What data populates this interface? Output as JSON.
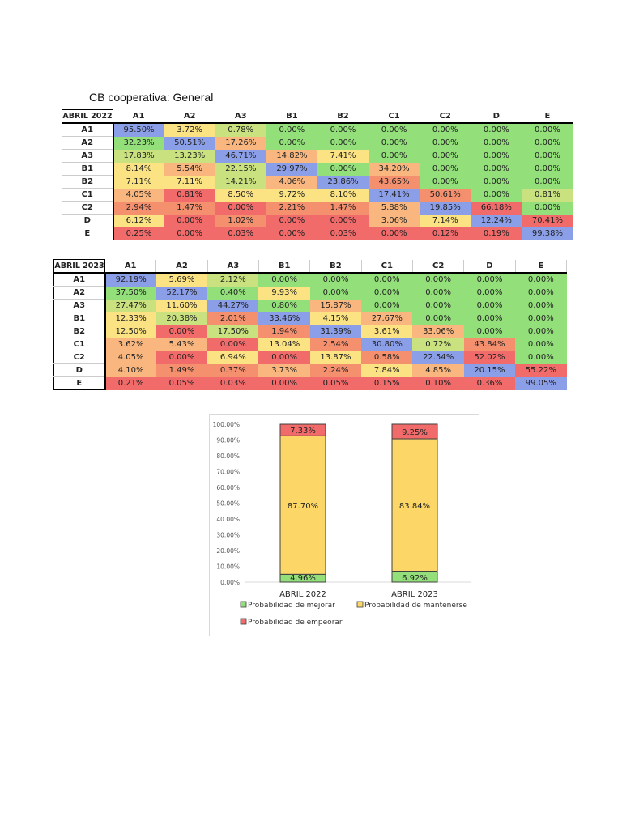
{
  "title": "CB cooperativa: General",
  "colors": {
    "b": "#8b9ee8",
    "g": "#93e07a",
    "lg": "#c9e27f",
    "y": "#fbe383",
    "o": "#f9b77f",
    "lr": "#f5906f",
    "r": "#f26b6b"
  },
  "tables": [
    {
      "corner": "ABRIL 2022",
      "columns": [
        "A1",
        "A2",
        "A3",
        "B1",
        "B2",
        "C1",
        "C2",
        "D",
        "E"
      ],
      "rows": [
        {
          "label": "A1",
          "values": [
            "95.50%",
            "3.72%",
            "0.78%",
            "0.00%",
            "0.00%",
            "0.00%",
            "0.00%",
            "0.00%",
            "0.00%"
          ],
          "colors": [
            "b",
            "y",
            "lg",
            "g",
            "g",
            "g",
            "g",
            "g",
            "g"
          ]
        },
        {
          "label": "A2",
          "values": [
            "32.23%",
            "50.51%",
            "17.26%",
            "0.00%",
            "0.00%",
            "0.00%",
            "0.00%",
            "0.00%",
            "0.00%"
          ],
          "colors": [
            "g",
            "b",
            "o",
            "g",
            "g",
            "g",
            "g",
            "g",
            "g"
          ]
        },
        {
          "label": "A3",
          "values": [
            "17.83%",
            "13.23%",
            "46.71%",
            "14.82%",
            "7.41%",
            "0.00%",
            "0.00%",
            "0.00%",
            "0.00%"
          ],
          "colors": [
            "lg",
            "lg",
            "b",
            "o",
            "y",
            "g",
            "g",
            "g",
            "g"
          ]
        },
        {
          "label": "B1",
          "values": [
            "8.14%",
            "5.54%",
            "22.15%",
            "29.97%",
            "0.00%",
            "34.20%",
            "0.00%",
            "0.00%",
            "0.00%"
          ],
          "colors": [
            "y",
            "o",
            "lg",
            "b",
            "g",
            "o",
            "g",
            "g",
            "g"
          ]
        },
        {
          "label": "B2",
          "values": [
            "7.11%",
            "7.11%",
            "14.21%",
            "4.06%",
            "23.86%",
            "43.65%",
            "0.00%",
            "0.00%",
            "0.00%"
          ],
          "colors": [
            "y",
            "y",
            "lg",
            "o",
            "b",
            "lr",
            "g",
            "g",
            "g"
          ]
        },
        {
          "label": "C1",
          "values": [
            "4.05%",
            "0.81%",
            "8.50%",
            "9.72%",
            "8.10%",
            "17.41%",
            "50.61%",
            "0.00%",
            "0.81%"
          ],
          "colors": [
            "o",
            "r",
            "y",
            "y",
            "y",
            "b",
            "lr",
            "g",
            "lg"
          ]
        },
        {
          "label": "C2",
          "values": [
            "2.94%",
            "1.47%",
            "0.00%",
            "2.21%",
            "1.47%",
            "5.88%",
            "19.85%",
            "66.18%",
            "0.00%"
          ],
          "colors": [
            "lr",
            "lr",
            "r",
            "lr",
            "lr",
            "o",
            "b",
            "r",
            "g"
          ]
        },
        {
          "label": "D",
          "values": [
            "6.12%",
            "0.00%",
            "1.02%",
            "0.00%",
            "0.00%",
            "3.06%",
            "7.14%",
            "12.24%",
            "70.41%"
          ],
          "colors": [
            "y",
            "r",
            "lr",
            "r",
            "r",
            "o",
            "y",
            "b",
            "r"
          ]
        },
        {
          "label": "E",
          "values": [
            "0.25%",
            "0.00%",
            "0.03%",
            "0.00%",
            "0.03%",
            "0.00%",
            "0.12%",
            "0.19%",
            "99.38%"
          ],
          "colors": [
            "r",
            "r",
            "r",
            "r",
            "r",
            "r",
            "r",
            "r",
            "b"
          ]
        }
      ]
    },
    {
      "corner": "ABRIL 2023",
      "columns": [
        "A1",
        "A2",
        "A3",
        "B1",
        "B2",
        "C1",
        "C2",
        "D",
        "E"
      ],
      "rows": [
        {
          "label": "A1",
          "values": [
            "92.19%",
            "5.69%",
            "2.12%",
            "0.00%",
            "0.00%",
            "0.00%",
            "0.00%",
            "0.00%",
            "0.00%"
          ],
          "colors": [
            "b",
            "y",
            "lg",
            "g",
            "g",
            "g",
            "g",
            "g",
            "g"
          ]
        },
        {
          "label": "A2",
          "values": [
            "37.50%",
            "52.17%",
            "0.40%",
            "9.93%",
            "0.00%",
            "0.00%",
            "0.00%",
            "0.00%",
            "0.00%"
          ],
          "colors": [
            "g",
            "b",
            "g",
            "y",
            "g",
            "g",
            "g",
            "g",
            "g"
          ]
        },
        {
          "label": "A3",
          "values": [
            "27.47%",
            "11.60%",
            "44.27%",
            "0.80%",
            "15.87%",
            "0.00%",
            "0.00%",
            "0.00%",
            "0.00%"
          ],
          "colors": [
            "lg",
            "y",
            "b",
            "g",
            "o",
            "g",
            "g",
            "g",
            "g"
          ]
        },
        {
          "label": "B1",
          "values": [
            "12.33%",
            "20.38%",
            "2.01%",
            "33.46%",
            "4.15%",
            "27.67%",
            "0.00%",
            "0.00%",
            "0.00%"
          ],
          "colors": [
            "y",
            "lg",
            "lr",
            "b",
            "y",
            "o",
            "g",
            "g",
            "g"
          ]
        },
        {
          "label": "B2",
          "values": [
            "12.50%",
            "0.00%",
            "17.50%",
            "1.94%",
            "31.39%",
            "3.61%",
            "33.06%",
            "0.00%",
            "0.00%"
          ],
          "colors": [
            "y",
            "r",
            "lg",
            "lr",
            "b",
            "y",
            "o",
            "g",
            "g"
          ]
        },
        {
          "label": "C1",
          "values": [
            "3.62%",
            "5.43%",
            "0.00%",
            "13.04%",
            "2.54%",
            "30.80%",
            "0.72%",
            "43.84%",
            "0.00%"
          ],
          "colors": [
            "o",
            "o",
            "r",
            "y",
            "lr",
            "b",
            "lg",
            "lr",
            "g"
          ]
        },
        {
          "label": "C2",
          "values": [
            "4.05%",
            "0.00%",
            "6.94%",
            "0.00%",
            "13.87%",
            "0.58%",
            "22.54%",
            "52.02%",
            "0.00%"
          ],
          "colors": [
            "o",
            "r",
            "y",
            "r",
            "y",
            "lr",
            "b",
            "r",
            "g"
          ]
        },
        {
          "label": "D",
          "values": [
            "4.10%",
            "1.49%",
            "0.37%",
            "3.73%",
            "2.24%",
            "7.84%",
            "4.85%",
            "20.15%",
            "55.22%"
          ],
          "colors": [
            "o",
            "lr",
            "lr",
            "o",
            "lr",
            "y",
            "o",
            "b",
            "r"
          ]
        },
        {
          "label": "E",
          "values": [
            "0.21%",
            "0.05%",
            "0.03%",
            "0.00%",
            "0.05%",
            "0.15%",
            "0.10%",
            "0.36%",
            "99.05%"
          ],
          "colors": [
            "r",
            "r",
            "r",
            "r",
            "r",
            "r",
            "r",
            "r",
            "b"
          ]
        }
      ]
    }
  ],
  "chart_data": {
    "type": "bar",
    "stacked": true,
    "categories": [
      "ABRIL 2022",
      "ABRIL 2023"
    ],
    "series": [
      {
        "name": "Probabilidad de mejorar",
        "values": [
          4.96,
          6.92
        ],
        "labels": [
          "4.96%",
          "6.92%"
        ],
        "color": "#93e07a"
      },
      {
        "name": "Probabilidad de mantenerse",
        "values": [
          87.7,
          83.84
        ],
        "labels": [
          "87.70%",
          "83.84%"
        ],
        "color": "#fcd667"
      },
      {
        "name": "Probabilidad de empeorar",
        "values": [
          7.33,
          9.25
        ],
        "labels": [
          "7.33%",
          "9.25%"
        ],
        "color": "#f26b6b"
      }
    ],
    "yticks": [
      "0.00%",
      "10.00%",
      "20.00%",
      "30.00%",
      "40.00%",
      "50.00%",
      "60.00%",
      "70.00%",
      "80.00%",
      "90.00%",
      "100.00%"
    ],
    "ylim": [
      0,
      100
    ],
    "grid": false,
    "legend": "bottom"
  }
}
